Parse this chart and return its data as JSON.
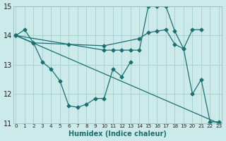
{
  "bg_color": "#cceaea",
  "grid_color": "#aad2d2",
  "line_color": "#1a7070",
  "xlabel": "Humidex (Indice chaleur)",
  "xmin": -0.3,
  "xmax": 23.3,
  "ymin": 11,
  "ymax": 15,
  "yticks": [
    11,
    12,
    13,
    14,
    15
  ],
  "xticks": [
    0,
    1,
    2,
    3,
    4,
    5,
    6,
    7,
    8,
    9,
    10,
    11,
    12,
    13,
    14,
    15,
    16,
    17,
    18,
    19,
    20,
    21,
    22,
    23
  ],
  "series": [
    {
      "x": [
        0,
        1,
        2,
        3,
        4,
        5,
        6,
        7,
        8,
        9,
        10,
        11,
        12,
        13
      ],
      "y": [
        14.0,
        14.2,
        13.75,
        13.1,
        12.85,
        12.45,
        11.6,
        11.55,
        11.65,
        11.85,
        11.85,
        12.85,
        12.6,
        13.1
      ]
    },
    {
      "x": [
        0,
        10,
        11,
        12,
        13,
        14,
        15,
        16,
        17,
        18,
        19,
        20,
        21,
        22,
        23
      ],
      "y": [
        14.0,
        13.5,
        13.5,
        13.5,
        13.5,
        13.5,
        15.0,
        15.0,
        15.0,
        14.15,
        13.55,
        12.0,
        12.5,
        11.05,
        11.05
      ]
    },
    {
      "x": [
        0,
        2,
        6,
        10,
        14,
        15,
        16,
        17,
        18,
        19,
        20,
        21
      ],
      "y": [
        14.0,
        13.75,
        13.7,
        13.65,
        13.9,
        14.1,
        14.15,
        14.2,
        13.7,
        13.55,
        14.2,
        14.2
      ]
    },
    {
      "x": [
        0,
        23
      ],
      "y": [
        14.0,
        11.0
      ]
    }
  ]
}
